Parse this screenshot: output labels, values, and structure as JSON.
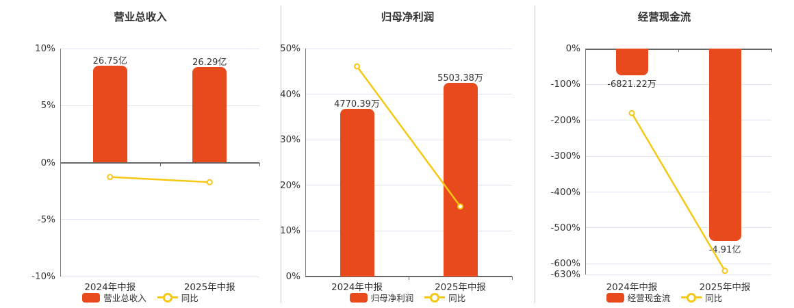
{
  "page": {
    "background": "#ffffff"
  },
  "colors": {
    "bar": "#e8491d",
    "line": "#f6c713",
    "marker_fill": "#ffffff",
    "zero_axis": "#666666",
    "axis_line": "#7a7a7a",
    "grid": "#e0e6f0",
    "text": "#333333",
    "separator": "#c9c9c9"
  },
  "chart_data": [
    {
      "type": "bar",
      "overlay": "line",
      "title": "营业总收入",
      "categories": [
        "2024年中报",
        "2025年中报"
      ],
      "bars": {
        "name": "营业总收入",
        "values": [
          26.75,
          26.29
        ],
        "labels": [
          "26.75亿",
          "26.29亿"
        ],
        "label_position": "above"
      },
      "line": {
        "name": "同比",
        "values_pct": [
          -1.27,
          -1.72
        ]
      },
      "y_axis": {
        "unit": "%",
        "min": -10,
        "max": 10,
        "ticks": [
          10,
          5,
          0,
          -5,
          -10
        ]
      },
      "grid": true,
      "legend_position": "bottom"
    },
    {
      "type": "bar",
      "overlay": "line",
      "title": "归母净利润",
      "categories": [
        "2024年中报",
        "2025年中报"
      ],
      "bars": {
        "name": "归母净利润",
        "values": [
          4770.39,
          5503.38
        ],
        "labels": [
          "4770.39万",
          "5503.38万"
        ],
        "label_position": "above"
      },
      "line": {
        "name": "同比",
        "values_pct": [
          46.1,
          15.37
        ]
      },
      "y_axis": {
        "unit": "%",
        "min": 0,
        "max": 50,
        "ticks": [
          50,
          40,
          30,
          20,
          10,
          0
        ]
      },
      "grid": true,
      "legend_position": "bottom"
    },
    {
      "type": "bar",
      "overlay": "line",
      "title": "经营现金流",
      "categories": [
        "2024年中报",
        "2025年中报"
      ],
      "bars": {
        "name": "经营现金流",
        "values": [
          -6821.22,
          -49100
        ],
        "labels": [
          "-6821.22万",
          "-4.91亿"
        ],
        "label_position": "below"
      },
      "line": {
        "name": "同比",
        "values_pct": [
          -180,
          -619.85
        ]
      },
      "y_axis": {
        "unit": "%",
        "min": -630,
        "max": 0,
        "ticks": [
          0,
          -100,
          -200,
          -300,
          -400,
          -500,
          -600,
          -630
        ]
      },
      "grid": true,
      "legend_position": "bottom"
    }
  ]
}
